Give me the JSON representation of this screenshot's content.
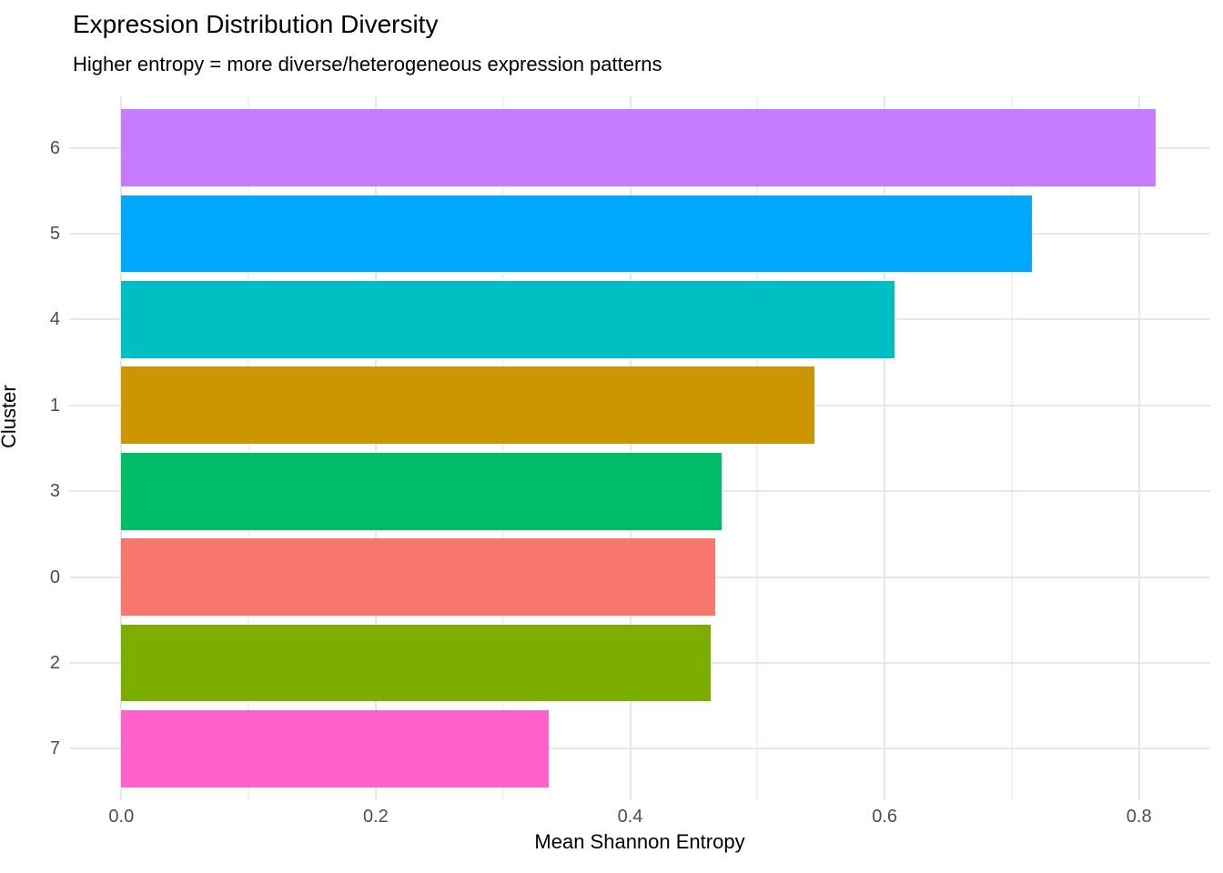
{
  "chart_data": {
    "type": "bar",
    "orientation": "horizontal",
    "title": "Expression Distribution Diversity",
    "subtitle": "Higher entropy = more diverse/heterogeneous expression patterns",
    "xlabel": "Mean Shannon Entropy",
    "ylabel": "Cluster",
    "categories": [
      "6",
      "5",
      "4",
      "1",
      "3",
      "0",
      "2",
      "7"
    ],
    "values": [
      0.813,
      0.716,
      0.608,
      0.545,
      0.472,
      0.467,
      0.463,
      0.336
    ],
    "bar_colors": [
      "#C77CFF",
      "#00A9FF",
      "#00BFC4",
      "#CD9600",
      "#00BE67",
      "#F8766D",
      "#7CAE00",
      "#FF61CC"
    ],
    "x_ticks": [
      0.0,
      0.2,
      0.4,
      0.6,
      0.8
    ],
    "x_tick_labels": [
      "0.0",
      "0.2",
      "0.4",
      "0.6",
      "0.8"
    ],
    "x_minor_ticks": [
      0.1,
      0.3,
      0.5,
      0.7
    ],
    "xlim": [
      -0.041,
      0.856
    ],
    "bar_width_fraction": 0.9,
    "grid": {
      "vertical": "major+minor",
      "horizontal": "major-at-category-centers"
    },
    "legend_position": "none",
    "style": {
      "background": "#ffffff",
      "grid_major_color": "#e7e7e7",
      "grid_minor_color": "#f1f1f1",
      "tick_label_color": "#4d4d4d",
      "text_color": "#000000"
    }
  }
}
